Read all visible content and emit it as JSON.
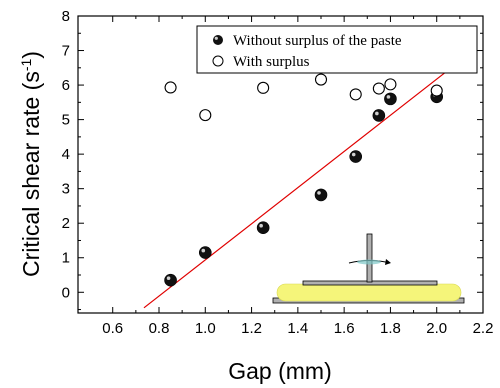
{
  "chart_data": {
    "type": "scatter",
    "xlabel": "Gap (mm)",
    "ylabel": "Critical shear rate (s",
    "ylabel_sup": "-1",
    "ylabel_close": ")",
    "xlim": [
      0.45,
      2.2
    ],
    "ylim": [
      -0.6,
      8
    ],
    "x_ticks": [
      "0.6",
      "0.8",
      "1.0",
      "1.2",
      "1.4",
      "1.6",
      "1.8",
      "2.0",
      "2.2"
    ],
    "y_ticks": [
      "0",
      "1",
      "2",
      "3",
      "4",
      "5",
      "6",
      "7",
      "8"
    ],
    "grid": false,
    "legend_position": "top-right",
    "series": [
      {
        "name": "Without surplus of the paste",
        "marker": "filled-sphere",
        "color": "#000000",
        "x": [
          0.85,
          1.0,
          1.25,
          1.5,
          1.65,
          1.75,
          1.8,
          2.0
        ],
        "y": [
          0.35,
          1.15,
          1.87,
          2.82,
          3.93,
          5.12,
          5.6,
          5.66
        ]
      },
      {
        "name": "With surplus",
        "marker": "open-circle",
        "color": "#000000",
        "x": [
          0.85,
          1.0,
          1.25,
          1.5,
          1.65,
          1.75,
          1.8,
          2.0
        ],
        "y": [
          5.93,
          5.13,
          5.92,
          6.16,
          5.73,
          5.9,
          6.02,
          5.84
        ]
      }
    ],
    "fit_line": {
      "color": "#e00000",
      "x": [
        0.735,
        2.12
      ],
      "y": [
        -0.45,
        6.8
      ]
    }
  }
}
